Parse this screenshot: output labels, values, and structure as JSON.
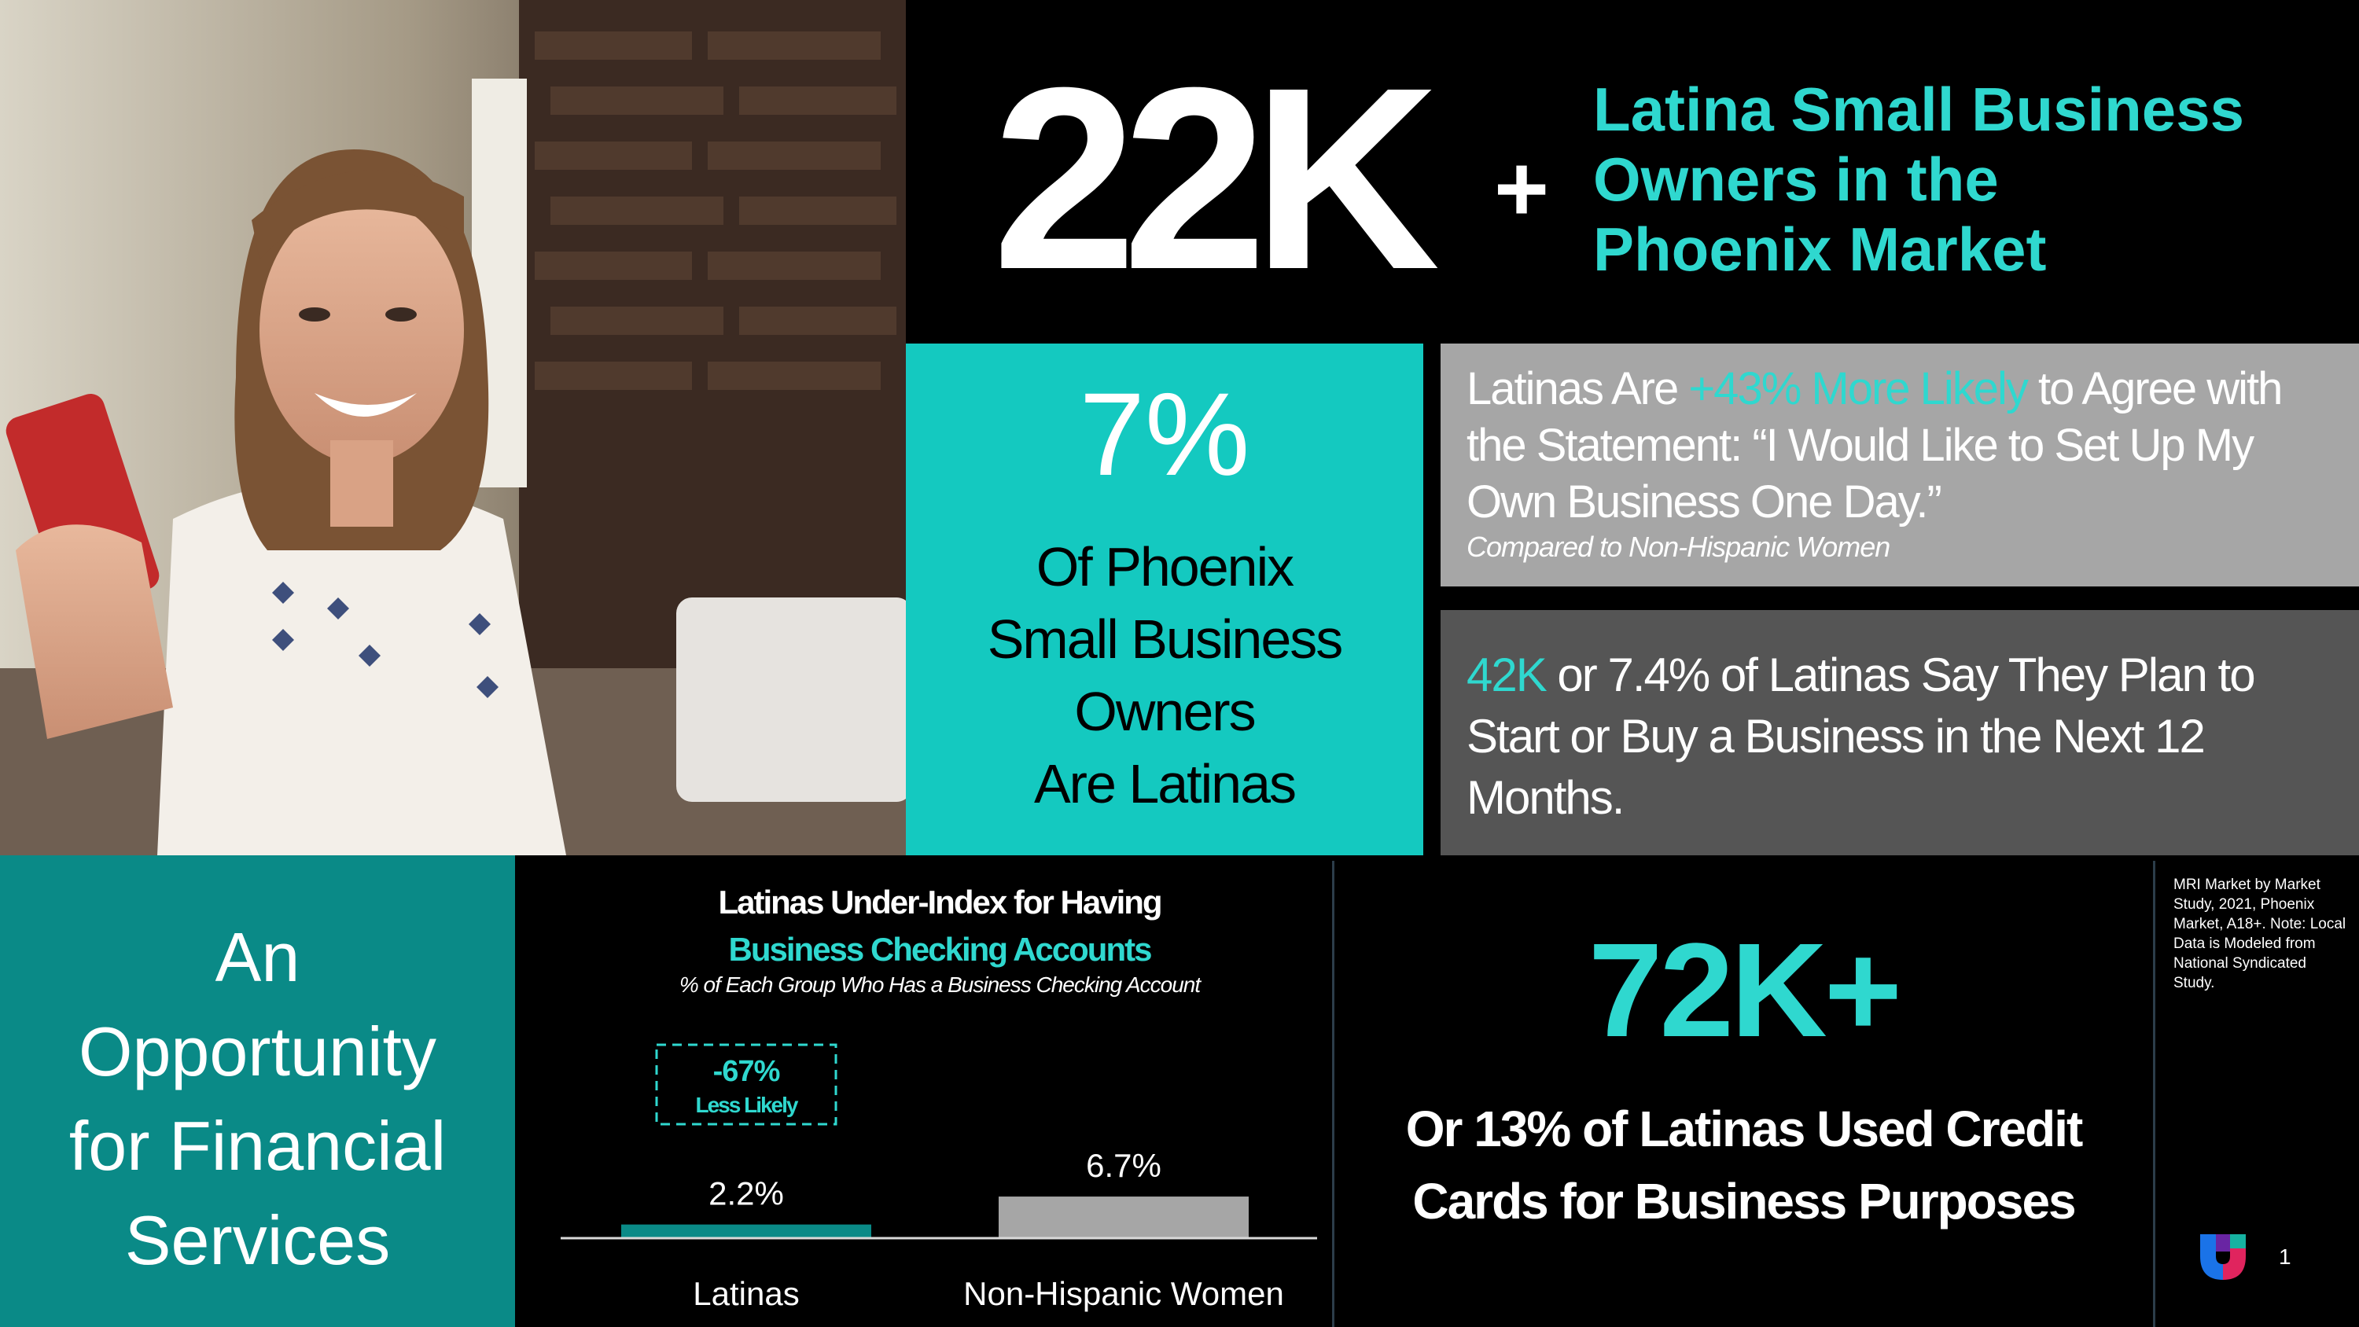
{
  "headline": {
    "number": "22K",
    "plus": "+",
    "text": "Latina Small Business\nOwners in the\nPhoenix Market"
  },
  "stat_7": {
    "value": "7%",
    "description": "Of Phoenix\nSmall Business\nOwners\nAre Latinas"
  },
  "stat_43": {
    "prefix": "Latinas Are ",
    "highlight": "+43% More Likely",
    "suffix": " to Agree with the Statement: “I Would Like to Set Up My Own Business One Day.”",
    "note": "Compared to Non-Hispanic Women"
  },
  "stat_42": {
    "highlight": "42K",
    "text": " or 7.4% of Latinas Say They Plan to Start or Buy a Business in the Next 12 Months."
  },
  "opportunity": {
    "text": "An\nOpportunity\nfor Financial\nServices"
  },
  "chart_data": {
    "type": "bar",
    "title": "Latinas Under-Index for Having Business Checking Accounts",
    "title_line1": "Latinas Under-Index for Having",
    "title_line2": "Business Checking Accounts",
    "subtitle": "% of Each Group Who Has a Business Checking Account",
    "categories": [
      "Latinas",
      "Non-Hispanic Women"
    ],
    "values": [
      2.2,
      6.7
    ],
    "data_labels": [
      "2.2%",
      "6.7%"
    ],
    "ylim": [
      0,
      10
    ],
    "colors": [
      "#0a8a87",
      "#a6a6a6"
    ],
    "callout": {
      "value": "-67%",
      "label": "Less Likely"
    },
    "grid": false
  },
  "stat_72": {
    "value": "72K+",
    "description": "Or 13% of Latinas Used Credit\nCards for Business Purposes"
  },
  "source_note": "MRI Market by Market Study, 2021, Phoenix Market, A18+. Note: Local Data is Modeled from National Syndicated Study.",
  "page_number": "1",
  "colors": {
    "accent": "#2fd8cf",
    "teal_panel": "#14c9c0",
    "dark_teal": "#0a8a87",
    "grey": "#a6a6a6",
    "dark_grey": "#555555"
  }
}
